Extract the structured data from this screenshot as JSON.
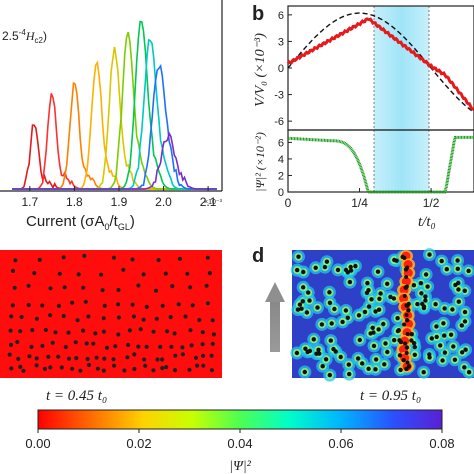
{
  "panel_a": {
    "field_text_prefix": "2.5",
    "field_text_sup": "-4",
    "field_text_H": "H",
    "field_text_sub": "c2",
    "field_text_close": ")",
    "xlabel_main": "Current (σA",
    "xlabel_sub0": "0",
    "xlabel_mid": "/t",
    "xlabel_sub1": "GL",
    "xlabel_close": ")",
    "xscale": "×10⁻³"
  },
  "panel_b": {
    "label": "b",
    "ylabel_top": "V/V₀ (×10⁻³)",
    "ylabel_bottom": "|Ψ|² (×10⁻²)",
    "xlabel": "t/t₀"
  },
  "panel_c": {
    "caption": "t = 0.45 t₀"
  },
  "panel_d": {
    "label": "d",
    "caption": "t = 0.95 t₀"
  },
  "colorbar": {
    "label": "|Ψ|²",
    "ticks": [
      "0.00",
      "0.02",
      "0.04",
      "0.06",
      "0.08"
    ],
    "colors": [
      "#ff0000",
      "#ff6a00",
      "#ffd200",
      "#c8ff00",
      "#4dff52",
      "#00ffc8",
      "#00b4ff",
      "#2a50ff",
      "#5a1fd6"
    ]
  },
  "chart_data": [
    {
      "type": "line",
      "panel": "a",
      "xlabel": "Current (σA₀/t_GL)",
      "x_ticks": [
        "1.7",
        "1.8",
        "1.9",
        "2.0",
        "2.1"
      ],
      "series": [
        {
          "color": "#e41a1c",
          "peak_x": 1.71,
          "peak_h": 0.38
        },
        {
          "color": "#ff3030",
          "peak_x": 1.75,
          "peak_h": 0.55
        },
        {
          "color": "#ff7f00",
          "peak_x": 1.8,
          "peak_h": 0.6
        },
        {
          "color": "#ffb000",
          "peak_x": 1.85,
          "peak_h": 0.72
        },
        {
          "color": "#d8c800",
          "peak_x": 1.89,
          "peak_h": 0.8
        },
        {
          "color": "#7ccd00",
          "peak_x": 1.92,
          "peak_h": 0.88
        },
        {
          "color": "#00c853",
          "peak_x": 1.95,
          "peak_h": 0.96
        },
        {
          "color": "#00c8c8",
          "peak_x": 1.97,
          "peak_h": 0.85
        },
        {
          "color": "#1f6fff",
          "peak_x": 1.99,
          "peak_h": 0.7
        },
        {
          "color": "#7b2fc9",
          "peak_x": 2.01,
          "peak_h": 0.3
        }
      ]
    },
    {
      "type": "line",
      "panel": "b-top",
      "y_ticks": [
        "6",
        "3",
        "0",
        "-3",
        "-6"
      ],
      "ylim": [
        -7,
        7
      ],
      "x_ticks": [
        "0",
        "1/4",
        "1/2"
      ],
      "shaded_interval": [
        0.28,
        0.55
      ]
    },
    {
      "type": "line",
      "panel": "b-bottom",
      "y_ticks": [
        "6",
        "4",
        "2",
        "0"
      ],
      "ylim": [
        0,
        7.5
      ]
    }
  ]
}
